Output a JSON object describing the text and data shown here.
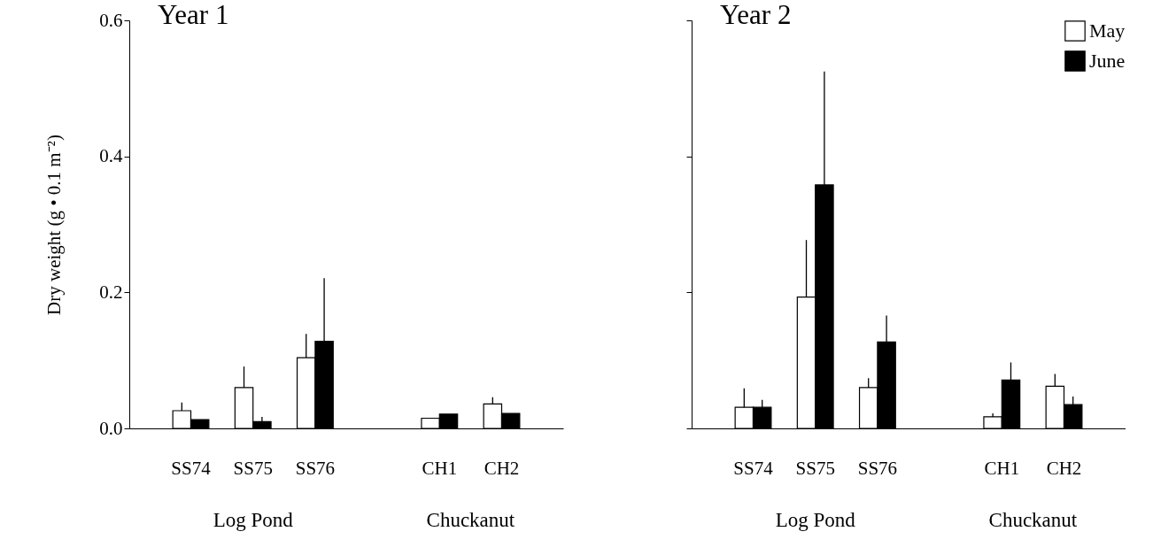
{
  "chart_data": [
    {
      "type": "bar",
      "title": "Year 1",
      "ylabel": "Dry weight (g • 0.1 m⁻²)",
      "categories": [
        "SS74",
        "SS75",
        "SS76",
        null,
        "CH1",
        "CH2"
      ],
      "series": [
        {
          "color": "#ffffff",
          "values": [
            0.026,
            0.06,
            0.104,
            null,
            0.015,
            0.036
          ],
          "errors": [
            [
              0.026,
              0.038
            ],
            [
              0.06,
              0.091
            ],
            [
              0.104,
              0.139
            ],
            null,
            null,
            [
              0.036,
              0.046
            ]
          ]
        },
        {
          "color": "#000000",
          "values": [
            0.013,
            0.01,
            0.128,
            null,
            0.021,
            0.022
          ],
          "errors": [
            null,
            [
              0.01,
              0.017
            ],
            [
              0.128,
              0.221
            ],
            null,
            null,
            null
          ]
        }
      ],
      "ylim": [
        0,
        0.6
      ],
      "yticks": [
        {
          "value": 0,
          "label": "0.0"
        },
        0.2,
        0.4,
        0.6
      ],
      "grid": false,
      "legend": "top right",
      "annotations": [
        "Log Pond",
        "Chuckanut"
      ]
    },
    {
      "type": "bar",
      "title": "Year 2",
      "categories": [
        "SS74",
        "SS75",
        "SS76",
        null,
        "CH1",
        "CH2"
      ],
      "series": [
        {
          "name": "May",
          "color": "#ffffff",
          "values": [
            0.031,
            0.193,
            0.06,
            null,
            0.017,
            0.062
          ],
          "errors": [
            [
              0.031,
              0.059
            ],
            [
              0.193,
              0.277
            ],
            [
              0.06,
              0.074
            ],
            null,
            [
              0.017,
              0.022
            ],
            [
              0.062,
              0.08
            ]
          ]
        },
        {
          "name": "June",
          "color": "#000000",
          "values": [
            0.031,
            0.358,
            0.127,
            null,
            0.071,
            0.035
          ],
          "errors": [
            [
              0.031,
              0.042
            ],
            [
              0.358,
              0.525
            ],
            [
              0.127,
              0.166
            ],
            null,
            [
              0.071,
              0.097
            ],
            [
              0.035,
              0.047
            ]
          ]
        }
      ],
      "ylim": [
        0,
        0.6
      ],
      "yticks": [
        {
          "value": 0,
          "label": null
        },
        {
          "value": 0.2,
          "label": null
        },
        {
          "value": 0.4,
          "label": null
        },
        {
          "value": 0.6,
          "label": null
        }
      ],
      "grid": false,
      "tick_labels": "x",
      "legend": "top right",
      "annotations": [
        "Log Pond",
        "Chuckanut"
      ]
    }
  ]
}
